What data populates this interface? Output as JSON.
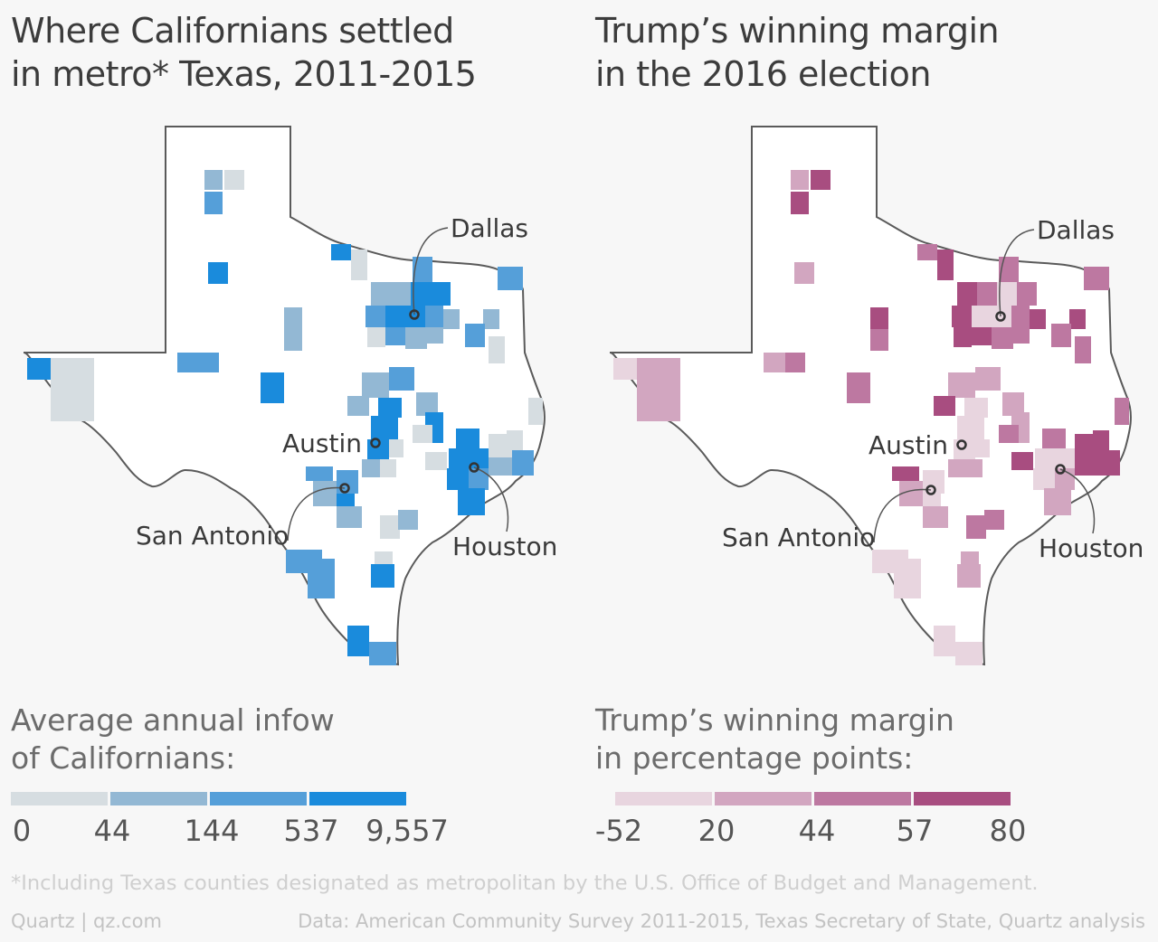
{
  "titles": {
    "left": "Where Californians settled\nin metro* Texas, 2011-2015",
    "right": "Trump’s winning margin\nin the 2016 election"
  },
  "cities": {
    "dallas": "Dallas",
    "austin": "Austin",
    "san_antonio": "San Antonio",
    "houston": "Houston"
  },
  "legend_left": {
    "title": "Average annual infow\nof Californians:",
    "ticks": [
      "0",
      "44",
      "144",
      "537",
      "9,557"
    ],
    "colors": [
      "#d6dde1",
      "#93b8d4",
      "#559fd9",
      "#1a8bdc"
    ]
  },
  "legend_right": {
    "title": "Trump’s winning margin\nin percentage points:",
    "ticks": [
      "-52",
      "20",
      "44",
      "57",
      "80"
    ],
    "colors": [
      "#e8d5df",
      "#d2a6c0",
      "#bd78a1",
      "#a84d80"
    ]
  },
  "footnote": "*Including Texas counties designated as metropolitan by the U.S. Office of Budget and Management.",
  "credit": "Quartz | qz.com",
  "source": "Data: American Community Survey 2011-2015, Texas Secretary of State, Quartz analysis",
  "map_fills": {
    "left": [
      "#93b8d4",
      "#d6dde1",
      "#559fd9",
      "#1a8bdc",
      "#93b8d4",
      "#d6dde1",
      "#559fd9",
      "#1a8bdc"
    ],
    "right": [
      "#d2a6c0",
      "#a84d80",
      "#e8d5df",
      "#bd78a1",
      "#d2a6c0",
      "#a84d80",
      "#e8d5df",
      "#bd78a1"
    ]
  }
}
